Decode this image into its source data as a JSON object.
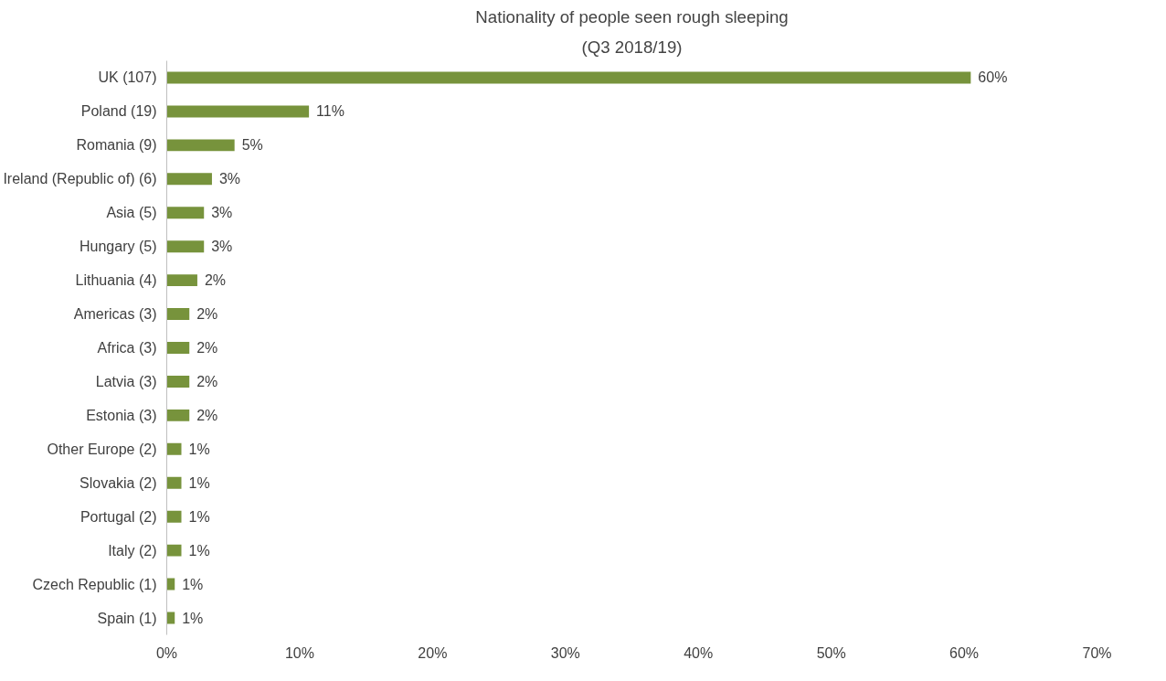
{
  "chart_data": {
    "type": "bar",
    "orientation": "horizontal",
    "title": "Nationality of people seen rough sleeping",
    "subtitle": "(Q3 2018/19)",
    "categories": [
      "UK (107)",
      "Poland (19)",
      "Romania (9)",
      "Ireland (Republic of) (6)",
      "Asia (5)",
      "Hungary (5)",
      "Lithuania (4)",
      "Americas (3)",
      "Africa (3)",
      "Latvia (3)",
      "Estonia (3)",
      "Other Europe (2)",
      "Slovakia (2)",
      "Portugal (2)",
      "Italy (2)",
      "Czech Republic (1)",
      "Spain (1)"
    ],
    "values": [
      60.5,
      10.7,
      5.1,
      3.4,
      2.8,
      2.8,
      2.3,
      1.7,
      1.7,
      1.7,
      1.7,
      1.1,
      1.1,
      1.1,
      1.1,
      0.6,
      0.6
    ],
    "value_labels": [
      "60%",
      "11%",
      "5%",
      "3%",
      "3%",
      "3%",
      "2%",
      "2%",
      "2%",
      "2%",
      "2%",
      "1%",
      "1%",
      "1%",
      "1%",
      "1%",
      "1%"
    ],
    "color": "#77933c",
    "xlim": [
      0,
      70
    ],
    "xticks": [
      {
        "value": 0,
        "label": "0%"
      },
      {
        "value": 10,
        "label": "10%"
      },
      {
        "value": 20,
        "label": "20%"
      },
      {
        "value": 30,
        "label": "30%"
      },
      {
        "value": 40,
        "label": "40%"
      },
      {
        "value": 50,
        "label": "50%"
      },
      {
        "value": 60,
        "label": "60%"
      },
      {
        "value": 70,
        "label": "70%"
      }
    ],
    "grid": false
  }
}
